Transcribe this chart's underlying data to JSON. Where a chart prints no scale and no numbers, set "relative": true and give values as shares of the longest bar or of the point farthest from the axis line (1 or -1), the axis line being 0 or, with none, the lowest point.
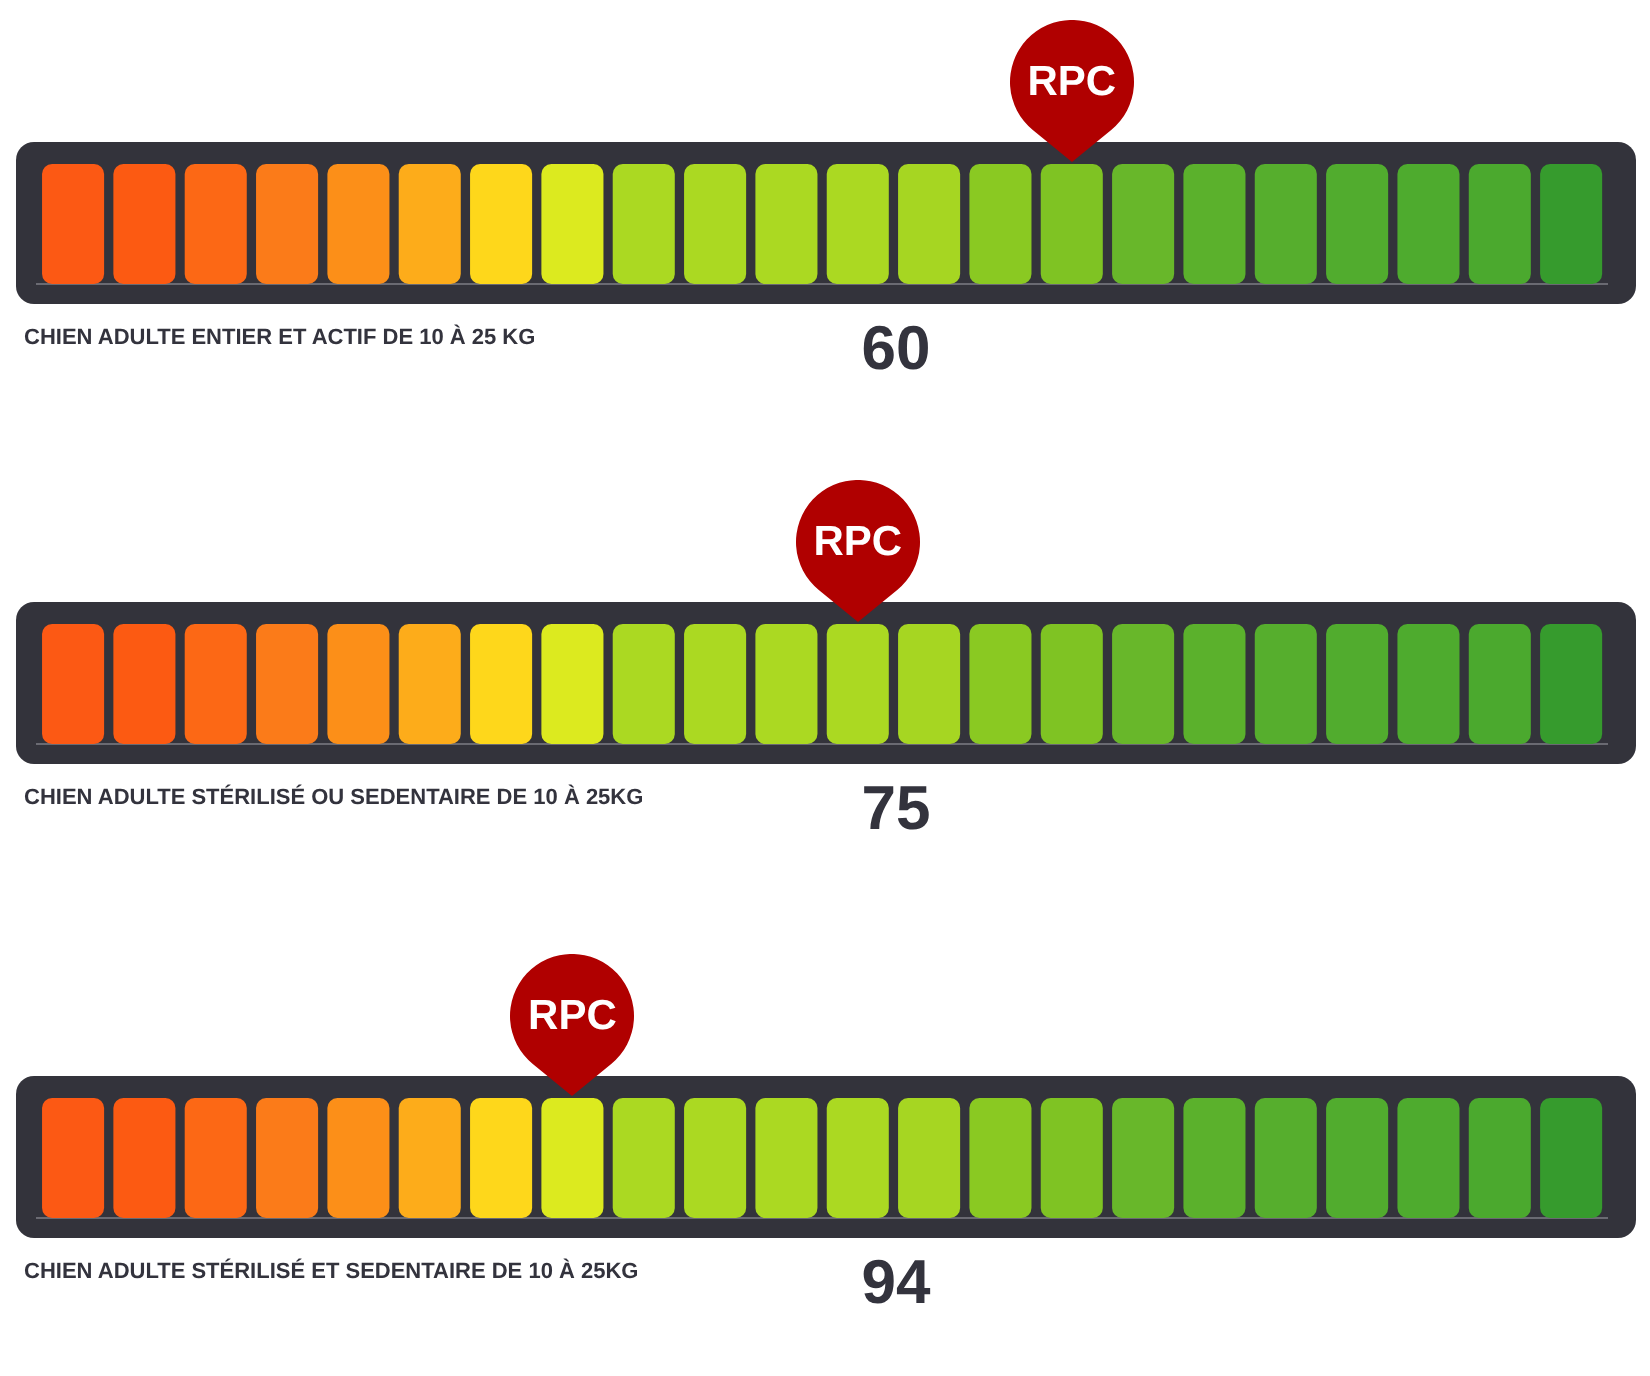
{
  "chart_data": [
    {
      "type": "bar",
      "relative": true,
      "title": "CHIEN ADULTE ENTIER ET ACTIF DE 10 À 25 KG",
      "categories": [
        null,
        null,
        null,
        null,
        null,
        null,
        null,
        null,
        null,
        null,
        null,
        null,
        null,
        null,
        null,
        null,
        null,
        null,
        null,
        null,
        null,
        null
      ],
      "values": [
        1,
        1,
        1,
        1,
        1,
        1,
        1,
        1,
        1,
        1,
        1,
        1,
        1,
        1,
        1,
        1,
        1,
        1,
        1,
        1,
        1,
        1
      ],
      "colors": [
        "#fc5914",
        "#fc5a12",
        "#fc6815",
        "#fb7b19",
        "#fc8f18",
        "#fdac1a",
        "#fed71b",
        "#dcea1f",
        "#abd922",
        "#abd922",
        "#abd922",
        "#abd922",
        "#a6d622",
        "#8ac922",
        "#7fc323",
        "#68b72a",
        "#5bb12c",
        "#56ae2d",
        "#51ac2e",
        "#4eab2e",
        "#4ba92e",
        "#369b2d"
      ],
      "annotations": [
        "RPC",
        "60"
      ]
    },
    {
      "type": "bar",
      "relative": true,
      "title": "CHIEN ADULTE STÉRILISÉ OU SEDENTAIRE DE 10 À 25KG",
      "categories": [
        null,
        null,
        null,
        null,
        null,
        null,
        null,
        null,
        null,
        null,
        null,
        null,
        null,
        null,
        null,
        null,
        null,
        null,
        null,
        null,
        null,
        null
      ],
      "values": [
        1,
        1,
        1,
        1,
        1,
        1,
        1,
        1,
        1,
        1,
        1,
        1,
        1,
        1,
        1,
        1,
        1,
        1,
        1,
        1,
        1,
        1
      ],
      "colors": [
        "#fc5914",
        "#fc5a12",
        "#fc6815",
        "#fb7b19",
        "#fc8f18",
        "#fdac1a",
        "#fed71b",
        "#dcea1f",
        "#abd922",
        "#abd922",
        "#abd922",
        "#abd922",
        "#a6d622",
        "#8ac922",
        "#7fc323",
        "#68b72a",
        "#5bb12c",
        "#56ae2d",
        "#51ac2e",
        "#4eab2e",
        "#4ba92e",
        "#369b2d"
      ],
      "annotations": [
        "RPC",
        "75"
      ]
    },
    {
      "type": "bar",
      "relative": true,
      "title": "CHIEN ADULTE STÉRILISÉ ET SEDENTAIRE DE 10 À 25KG",
      "categories": [
        null,
        null,
        null,
        null,
        null,
        null,
        null,
        null,
        null,
        null,
        null,
        null,
        null,
        null,
        null,
        null,
        null,
        null,
        null,
        null,
        null,
        null
      ],
      "values": [
        1,
        1,
        1,
        1,
        1,
        1,
        1,
        1,
        1,
        1,
        1,
        1,
        1,
        1,
        1,
        1,
        1,
        1,
        1,
        1,
        1,
        1
      ],
      "colors": [
        "#fc5914",
        "#fc5a12",
        "#fc6815",
        "#fb7b19",
        "#fc8f18",
        "#fdac1a",
        "#fed71b",
        "#dcea1f",
        "#abd922",
        "#abd922",
        "#abd922",
        "#abd922",
        "#a6d622",
        "#8ac922",
        "#7fc323",
        "#68b72a",
        "#5bb12c",
        "#56ae2d",
        "#51ac2e",
        "#4eab2e",
        "#4ba92e",
        "#369b2d"
      ],
      "annotations": [
        "RPC",
        "94"
      ]
    }
  ]
}
